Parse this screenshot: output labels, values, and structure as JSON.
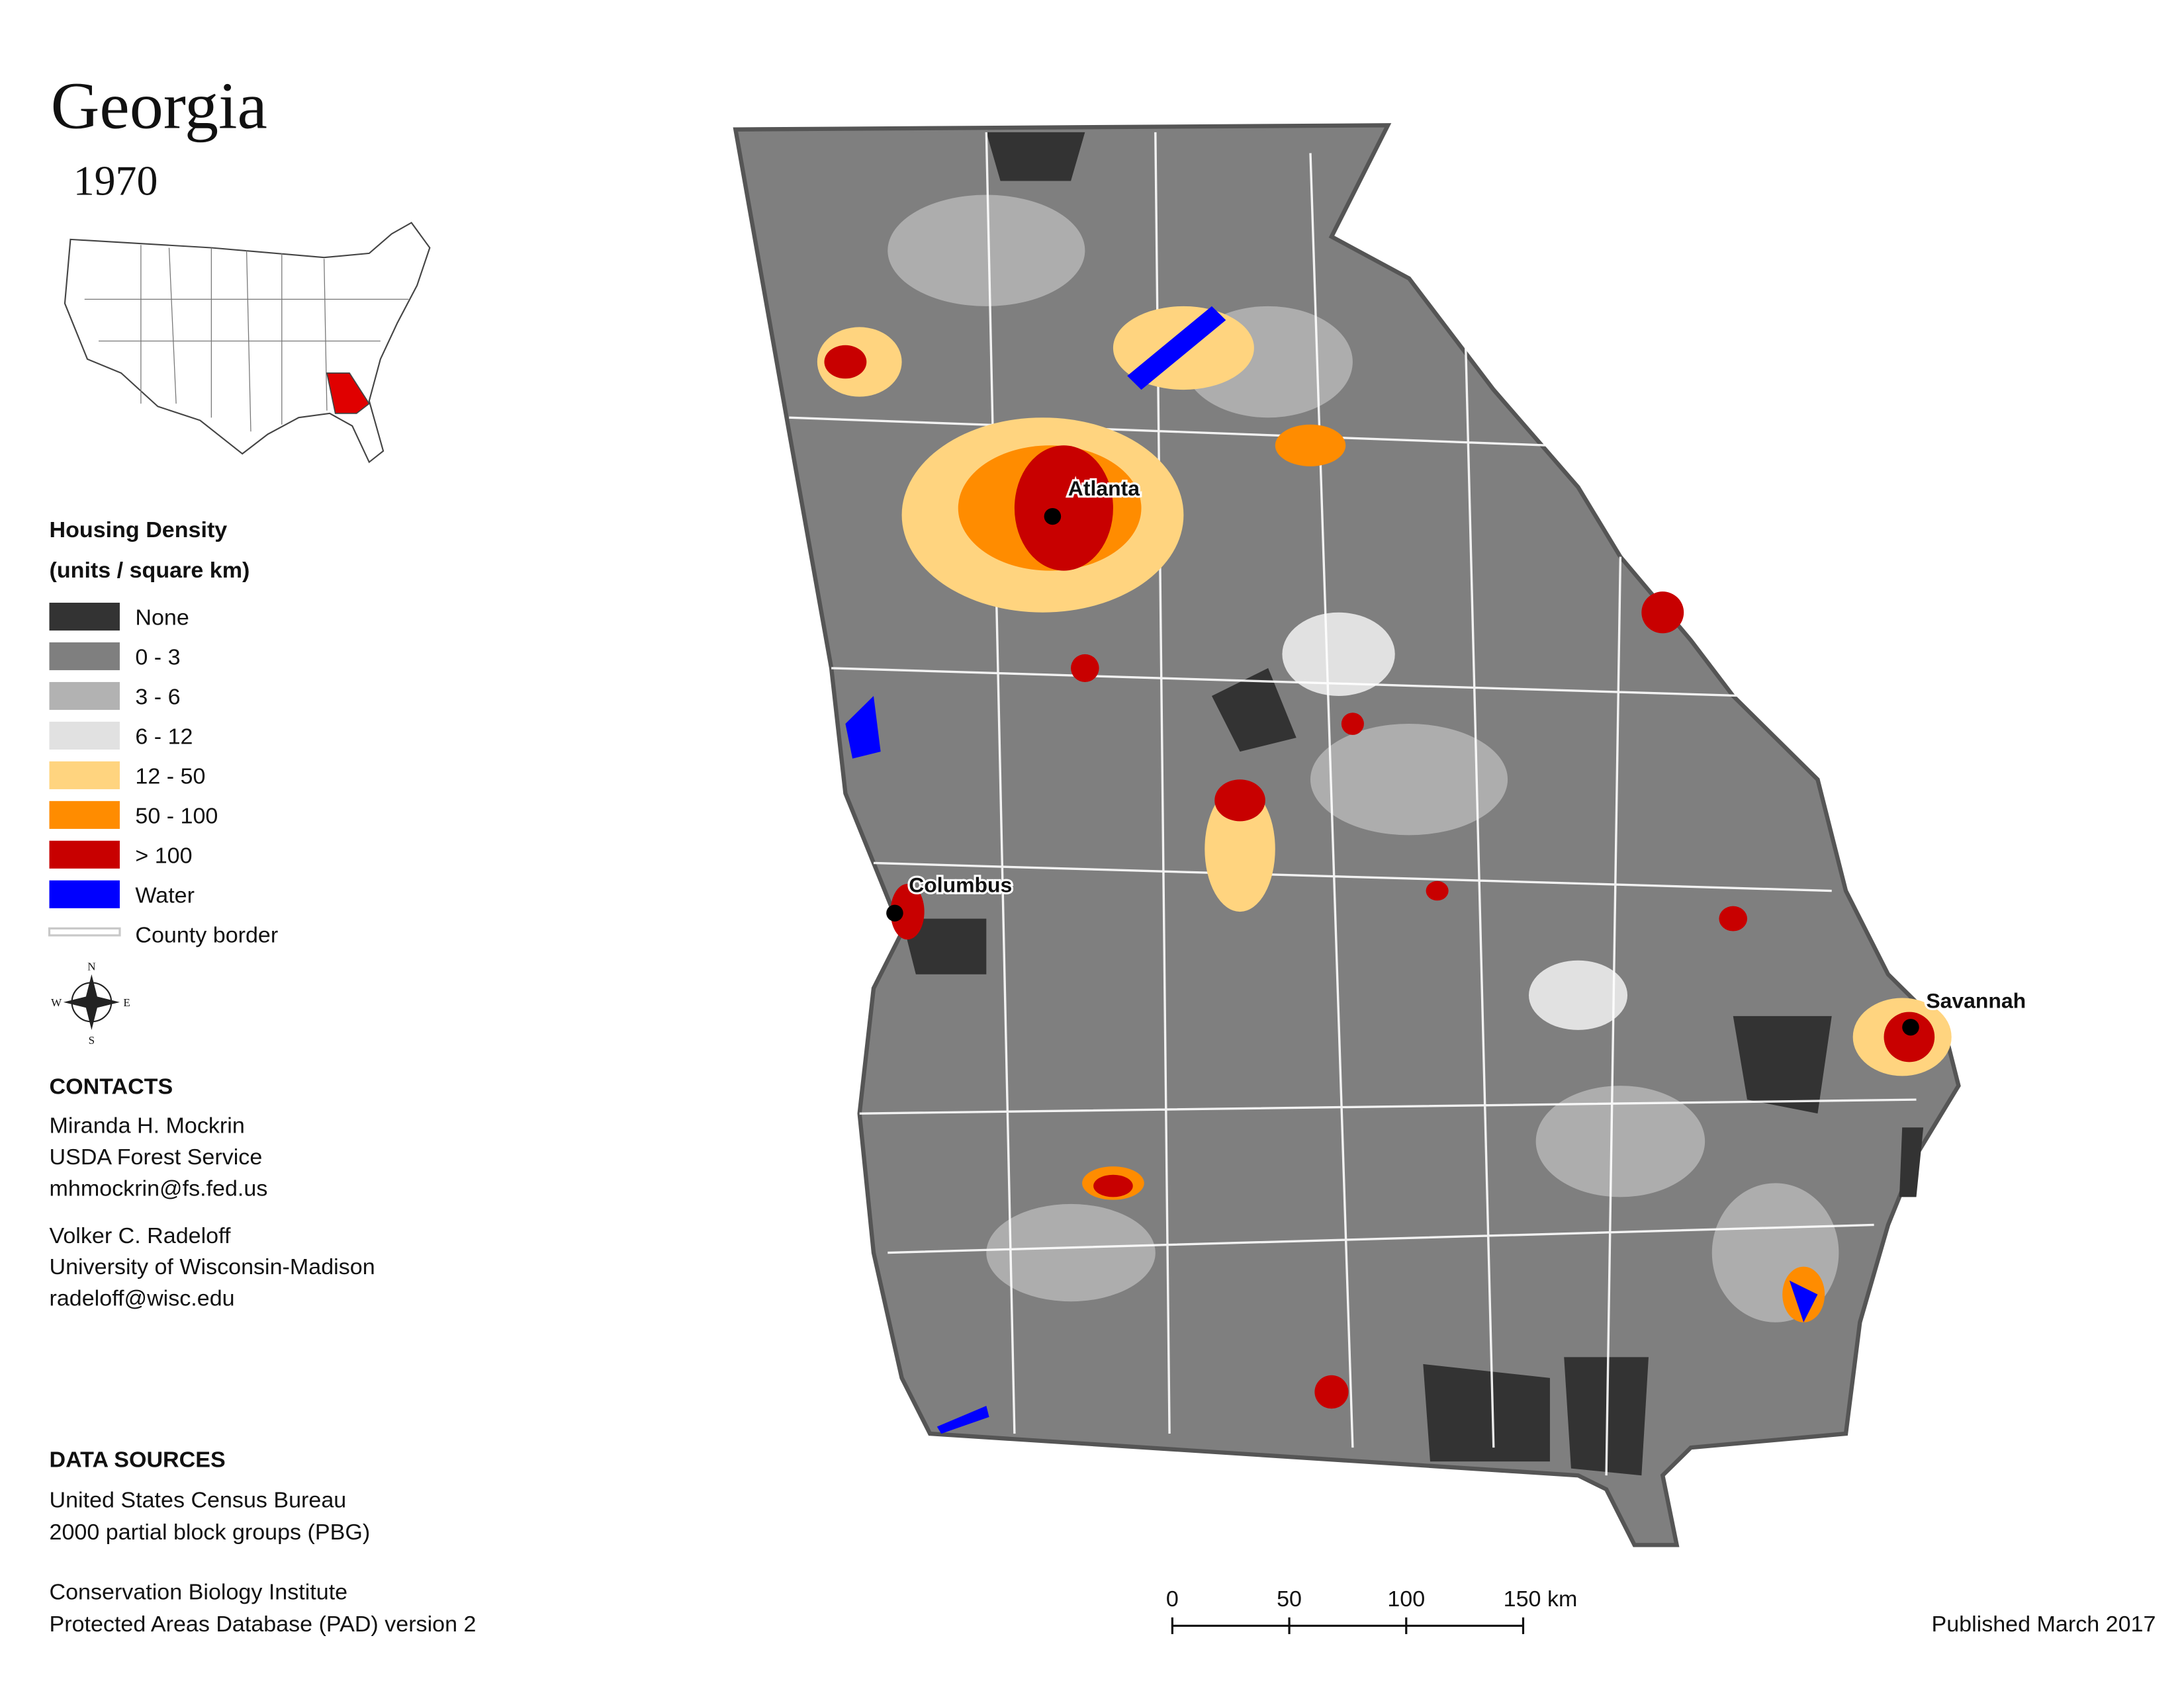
{
  "header": {
    "title": "Georgia",
    "year": "1970"
  },
  "legend": {
    "title": "Housing Density",
    "subtitle": "(units / square km)",
    "items": [
      {
        "label": "None",
        "color": "#333333"
      },
      {
        "label": "0 - 3",
        "color": "#7f7f7f"
      },
      {
        "label": "3 - 6",
        "color": "#b2b2b2"
      },
      {
        "label": "6 - 12",
        "color": "#e1e1e1"
      },
      {
        "label": "12 - 50",
        "color": "#ffd47f"
      },
      {
        "label": "50 - 100",
        "color": "#ff8c00"
      },
      {
        "label": "> 100",
        "color": "#c80000"
      },
      {
        "label": "Water",
        "color": "#0000ff"
      },
      {
        "label": "County border",
        "color": "#c8c8c8"
      }
    ]
  },
  "cities": [
    {
      "label": "Atlanta"
    },
    {
      "label": "Columbus"
    },
    {
      "label": "Savannah"
    }
  ],
  "compass": {
    "n": "N",
    "s": "S",
    "e": "E",
    "w": "W"
  },
  "contacts": {
    "title": "CONTACTS",
    "people": [
      [
        "Miranda H. Mockrin",
        "USDA Forest Service",
        "mhmockrin@fs.fed.us"
      ],
      [
        "Volker C. Radeloff",
        "University of Wisconsin-Madison",
        "radeloff@wisc.edu"
      ]
    ]
  },
  "data_sources": {
    "title": "DATA SOURCES",
    "sources": [
      [
        "United States Census Bureau",
        "2000 partial block groups (PBG)"
      ],
      [
        "Conservation Biology Institute",
        "Protected Areas Database (PAD) version 2"
      ]
    ]
  },
  "scale_bar": {
    "ticks": [
      0,
      50,
      100,
      {
        "value": 150,
        "label": "150 km"
      }
    ]
  },
  "published": "Published March 2017"
}
